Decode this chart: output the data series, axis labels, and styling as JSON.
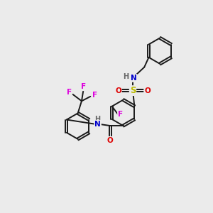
{
  "background_color": "#ebebeb",
  "bond_color": "#1a1a1a",
  "atom_colors": {
    "F": "#dd00dd",
    "O": "#dd0000",
    "N": "#0000cc",
    "S": "#bbbb00",
    "H_gray": "#666666",
    "C": "#1a1a1a"
  },
  "lw": 1.4,
  "ring_r": 0.62
}
